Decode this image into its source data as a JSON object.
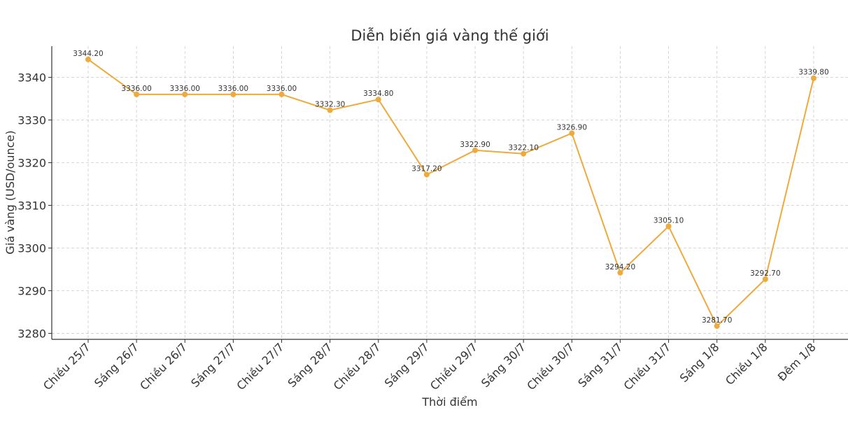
{
  "chart_data": {
    "type": "line",
    "title": "Diễn biến giá vàng thế giới",
    "xlabel": "Thời điểm",
    "ylabel": "Giá vàng (USD/ounce)",
    "categories": [
      "Chiều 25/7",
      "Sáng 26/7",
      "Chiều 26/7",
      "Sáng 27/7",
      "Chiều 27/7",
      "Sáng 28/7",
      "Chiều 28/7",
      "Sáng 29/7",
      "Chiều 29/7",
      "Sáng 30/7",
      "Chiều 30/7",
      "Sáng 31/7",
      "Chiều 31/7",
      "Sáng 1/8",
      "Chiều 1/8",
      "Đêm 1/8"
    ],
    "values": [
      3344.2,
      3336.0,
      3336.0,
      3336.0,
      3336.0,
      3332.3,
      3334.8,
      3317.2,
      3322.9,
      3322.1,
      3326.9,
      3294.2,
      3305.1,
      3281.7,
      3292.7,
      3339.8
    ],
    "data_labels": [
      "3344.20",
      "3336.00",
      "3336.00",
      "3336.00",
      "3336.00",
      "3332.30",
      "3334.80",
      "3317.20",
      "3322.90",
      "3322.10",
      "3326.90",
      "3294.20",
      "3305.10",
      "3281.70",
      "3292.70",
      "3339.80"
    ],
    "yticks": [
      3280,
      3290,
      3300,
      3310,
      3320,
      3330,
      3340
    ],
    "ylim": [
      3278.6,
      3347.3
    ],
    "grid": true,
    "color": "#eeaa3c"
  }
}
